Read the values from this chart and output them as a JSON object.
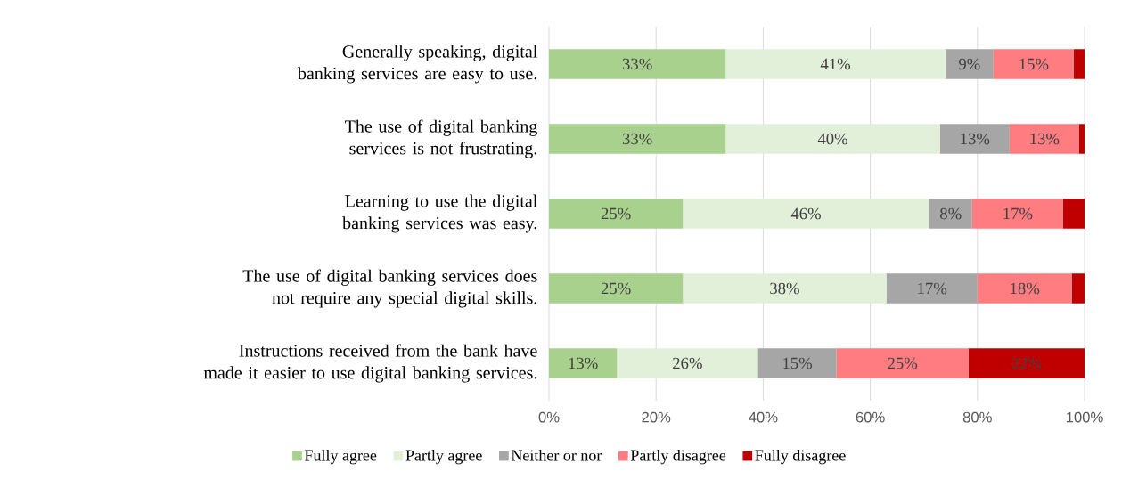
{
  "chart_data": {
    "type": "bar",
    "orientation": "horizontal",
    "stacked": true,
    "categories": [
      "Generally speaking, digital banking services are easy to use.",
      "The use of digital banking services is not frustrating.",
      "Learning to use the digital banking services was easy.",
      "The use of digital banking services does not require any special digital skills.",
      "Instructions received from the bank have made it easier to use digital banking services."
    ],
    "series": [
      {
        "name": "Fully agree",
        "color": "#a9d18e",
        "values": [
          33,
          33,
          25,
          25,
          12.7
        ],
        "value_labels": [
          "33%",
          "33%",
          "25%",
          "25%",
          "13%"
        ]
      },
      {
        "name": "Partly agree",
        "color": "#e2f0d9",
        "values": [
          41,
          40,
          46,
          38,
          26.3
        ],
        "value_labels": [
          "41%",
          "40%",
          "46%",
          "38%",
          "26%"
        ]
      },
      {
        "name": "Neither or nor",
        "color": "#a6a6a6",
        "values": [
          9,
          13,
          8,
          17,
          14.7
        ],
        "value_labels": [
          "9%",
          "13%",
          "8%",
          "17%",
          "15%"
        ]
      },
      {
        "name": "Partly disagree",
        "color": "#ff7c80",
        "values": [
          15,
          13,
          17,
          17.6,
          24.6
        ],
        "value_labels": [
          "15%",
          "13%",
          "17%",
          "18%",
          "25%"
        ]
      },
      {
        "name": "Fully disagree",
        "color": "#c00000",
        "values": [
          2,
          1,
          4,
          2.4,
          21.7
        ],
        "value_labels": [
          null,
          null,
          null,
          null,
          "22%"
        ]
      }
    ],
    "xlim": [
      0,
      100
    ],
    "xticks": [
      {
        "value": 0,
        "label": "0%"
      },
      {
        "value": 20,
        "label": "20%"
      },
      {
        "value": 40,
        "label": "40%"
      },
      {
        "value": 60,
        "label": "60%"
      },
      {
        "value": 80,
        "label": "80%"
      },
      {
        "value": 100,
        "label": "100%"
      }
    ],
    "grid": "x",
    "legend": "bottom"
  }
}
